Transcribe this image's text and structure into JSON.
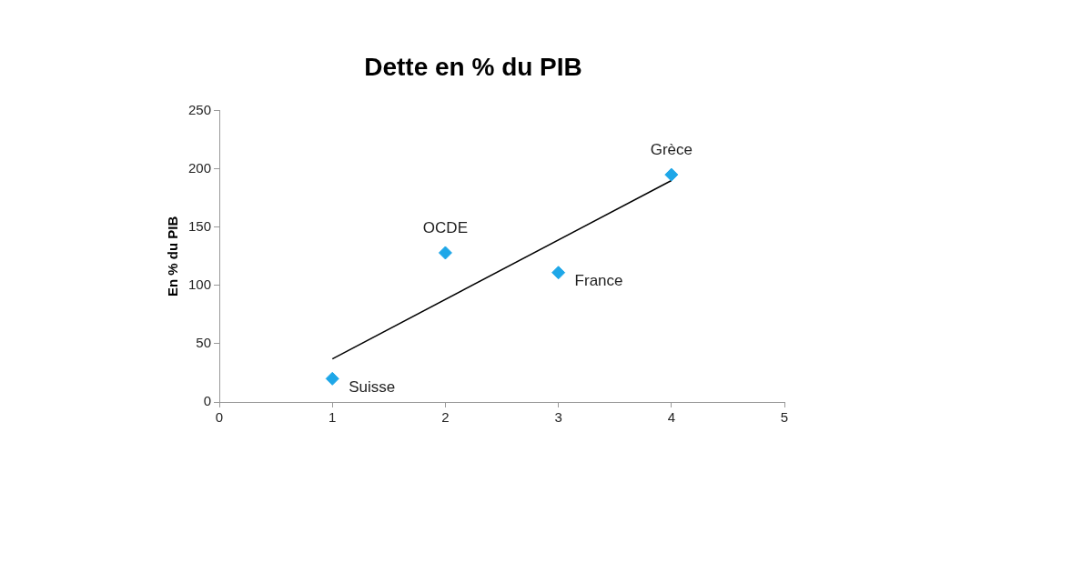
{
  "chart_data": {
    "type": "scatter",
    "title": "Dette en % du PIB",
    "ylabel": "En % du PIB",
    "series": [
      {
        "color": "#1ea7e8",
        "x": [
          1,
          2,
          3,
          4
        ],
        "values": [
          20,
          128,
          111,
          195
        ]
      },
      {
        "type": "line",
        "color": "#000000",
        "x": [
          1,
          4
        ],
        "values": [
          37,
          190
        ],
        "marker": "none"
      }
    ],
    "annotations": [
      {
        "text": "Suisse",
        "x": 1,
        "y": 20
      },
      {
        "text": "OCDE",
        "x": 2,
        "y": 128
      },
      {
        "text": "France",
        "x": 3,
        "y": 111
      },
      {
        "text": "Grèce",
        "x": 4,
        "y": 195
      }
    ],
    "xlim": [
      0,
      5
    ],
    "xticks": [
      0,
      1,
      2,
      3,
      4,
      5
    ],
    "ylim": [
      0,
      250
    ],
    "yticks": [
      0,
      50,
      100,
      150,
      200,
      250
    ],
    "grid": false,
    "legend": false,
    "marker": "diamond"
  }
}
